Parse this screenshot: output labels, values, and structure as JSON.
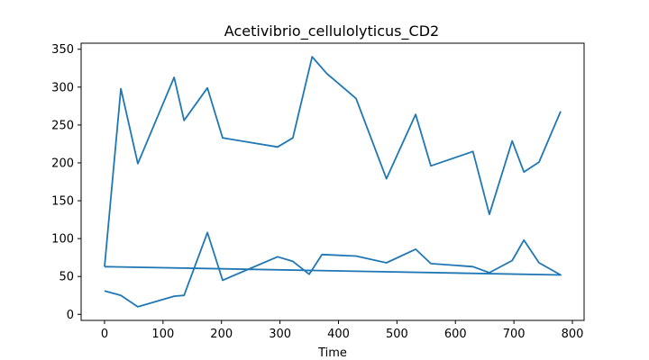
{
  "chart_data": {
    "type": "line",
    "title": "Acetivibrio_cellulolyticus_CD2",
    "xlabel": "Time",
    "ylabel": "",
    "xlim": [
      -40,
      820
    ],
    "ylim": [
      -8,
      358
    ],
    "xticks": [
      0,
      100,
      200,
      300,
      400,
      500,
      600,
      700,
      800
    ],
    "yticks": [
      0,
      50,
      100,
      150,
      200,
      250,
      300,
      350
    ],
    "grid": false,
    "color": "#1f77b4",
    "series": [
      {
        "x": [
          0,
          28,
          57,
          119,
          136,
          176,
          202,
          296,
          322,
          355,
          380,
          430,
          482,
          532,
          558,
          630,
          658,
          697,
          717,
          743,
          780
        ],
        "y": [
          63,
          298,
          199,
          313,
          256,
          299,
          233,
          221,
          233,
          340,
          318,
          285,
          179,
          264,
          196,
          215,
          132,
          229,
          188,
          201,
          268
        ]
      },
      {
        "x": [
          0,
          28,
          57,
          119,
          136,
          176,
          202,
          296,
          322,
          350,
          372,
          430,
          482,
          532,
          558,
          630,
          658,
          697,
          717,
          743,
          780,
          0
        ],
        "y": [
          31,
          25,
          10,
          24,
          25,
          108,
          45,
          76,
          70,
          53,
          79,
          77,
          68,
          86,
          67,
          63,
          55,
          71,
          98,
          68,
          52,
          63
        ]
      }
    ]
  }
}
